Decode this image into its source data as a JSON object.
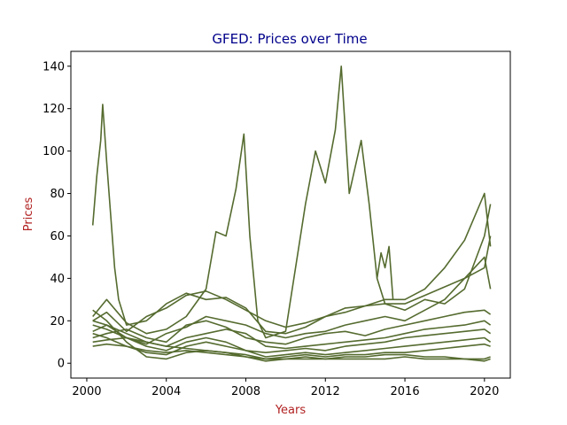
{
  "chart_data": {
    "type": "line",
    "title": "GFED: Prices over Time",
    "xlabel": "Years",
    "ylabel": "Prices",
    "xlim": [
      1999.2,
      2021.3
    ],
    "ylim": [
      -7,
      147
    ],
    "xticks": [
      2000,
      2004,
      2008,
      2012,
      2016,
      2020
    ],
    "yticks": [
      0,
      20,
      40,
      60,
      80,
      100,
      120,
      140
    ],
    "grid": false,
    "legend": "none",
    "colors": {
      "line": "#556b2f",
      "title": "#00008b",
      "axis_label": "#b22222"
    },
    "series": [
      {
        "x": [
          2000.3,
          2000.5,
          2000.7,
          2000.8,
          2001.0,
          2001.2,
          2001.4,
          2001.6,
          2002.0,
          2003.0,
          2004.0,
          2005.0,
          2006.0,
          2007.0,
          2008.0,
          2009.0,
          2010.0,
          2011.0,
          2012.0,
          2013.0,
          2014.0,
          2015.0,
          2016.0,
          2017.0,
          2018.0,
          2019.0,
          2020.0,
          2020.3
        ],
        "y": [
          65,
          88,
          105,
          122,
          95,
          70,
          45,
          30,
          18,
          20,
          28,
          33,
          30,
          31,
          26,
          15,
          14,
          17,
          22,
          24,
          27,
          28,
          28,
          32,
          36,
          40,
          45,
          60
        ]
      },
      {
        "x": [
          2000.3,
          2001.0,
          2002.0,
          2003.0,
          2004.0,
          2005.0,
          2006.0,
          2006.5,
          2007.0,
          2007.5,
          2007.9,
          2008.2,
          2008.6,
          2009.0,
          2010.0,
          2011.0,
          2011.5,
          2012.0,
          2012.5,
          2012.8,
          2013.2,
          2013.8,
          2014.2,
          2014.6,
          2015.0,
          2016.0,
          2017.0,
          2018.0,
          2019.0,
          2020.0,
          2020.3
        ],
        "y": [
          22,
          30,
          19,
          14,
          16,
          22,
          35,
          62,
          60,
          82,
          108,
          60,
          20,
          12,
          15,
          75,
          100,
          85,
          110,
          140,
          80,
          105,
          75,
          40,
          28,
          25,
          30,
          28,
          35,
          60,
          75
        ]
      },
      {
        "x": [
          2000.3,
          2001.0,
          2002.0,
          2003.0,
          2004.0,
          2005.0,
          2006.0,
          2007.0,
          2008.0,
          2009.0,
          2010.0,
          2011.0,
          2012.0,
          2013.0,
          2014.0,
          2015.0,
          2016.0,
          2017.0,
          2018.0,
          2019.0,
          2020.0,
          2020.3
        ],
        "y": [
          20,
          24,
          15,
          22,
          26,
          32,
          34,
          30,
          25,
          20,
          17,
          19,
          22,
          26,
          27,
          30,
          30,
          35,
          45,
          58,
          80,
          55
        ]
      },
      {
        "x": [
          2000.3,
          2001.0,
          2002.0,
          2003.0,
          2004.0,
          2005.0,
          2006.0,
          2007.0,
          2008.0,
          2009.0,
          2010.0,
          2011.0,
          2012.0,
          2013.0,
          2014.0,
          2015.0,
          2016.0,
          2017.0,
          2018.0,
          2019.0,
          2020.0,
          2020.3
        ],
        "y": [
          15,
          18,
          12,
          9,
          14,
          17,
          22,
          20,
          18,
          14,
          12,
          14,
          15,
          18,
          20,
          22,
          20,
          25,
          30,
          40,
          50,
          35
        ]
      },
      {
        "x": [
          2000.3,
          2001.0,
          2002.0,
          2003.0,
          2004.0,
          2005.0,
          2006.0,
          2007.0,
          2008.0,
          2009.0,
          2010.0,
          2011.0,
          2012.0,
          2013.0,
          2014.0,
          2015.0,
          2016.0,
          2017.0,
          2018.0,
          2019.0,
          2020.0,
          2020.3
        ],
        "y": [
          12,
          14,
          16,
          12,
          10,
          18,
          20,
          17,
          12,
          10,
          9,
          12,
          14,
          15,
          13,
          16,
          18,
          20,
          22,
          24,
          25,
          23
        ]
      },
      {
        "x": [
          2000.3,
          2001.0,
          2002.0,
          2003.0,
          2004.0,
          2005.0,
          2006.0,
          2007.0,
          2008.0,
          2009.0,
          2010.0,
          2011.0,
          2012.0,
          2013.0,
          2014.0,
          2015.0,
          2016.0,
          2017.0,
          2018.0,
          2019.0,
          2020.0,
          2020.3
        ],
        "y": [
          10,
          11,
          12,
          10,
          8,
          12,
          14,
          16,
          14,
          8,
          7,
          8,
          9,
          10,
          11,
          12,
          14,
          16,
          17,
          18,
          20,
          18
        ]
      },
      {
        "x": [
          2000.3,
          2001.0,
          2002.0,
          2003.0,
          2004.0,
          2005.0,
          2006.0,
          2007.0,
          2008.0,
          2009.0,
          2010.0,
          2011.0,
          2012.0,
          2013.0,
          2014.0,
          2015.0,
          2016.0,
          2017.0,
          2018.0,
          2019.0,
          2020.0,
          2020.3
        ],
        "y": [
          8,
          9,
          8,
          5,
          4,
          8,
          10,
          8,
          6,
          5,
          6,
          7,
          6,
          8,
          9,
          10,
          12,
          13,
          14,
          15,
          16,
          14
        ]
      },
      {
        "x": [
          2000.3,
          2001.0,
          2002.0,
          2003.0,
          2004.0,
          2005.0,
          2006.0,
          2007.0,
          2008.0,
          2009.0,
          2010.0,
          2011.0,
          2012.0,
          2013.0,
          2014.0,
          2015.0,
          2016.0,
          2017.0,
          2018.0,
          2019.0,
          2020.0,
          2020.3
        ],
        "y": [
          18,
          16,
          12,
          8,
          6,
          10,
          12,
          10,
          6,
          3,
          4,
          5,
          4,
          5,
          6,
          7,
          8,
          9,
          10,
          11,
          12,
          10
        ]
      },
      {
        "x": [
          2000.3,
          2001.0,
          2002.0,
          2003.0,
          2004.0,
          2005.0,
          2006.0,
          2007.0,
          2008.0,
          2009.0,
          2010.0,
          2011.0,
          2012.0,
          2013.0,
          2014.0,
          2015.0,
          2016.0,
          2017.0,
          2018.0,
          2019.0,
          2020.0,
          2020.3
        ],
        "y": [
          25,
          20,
          10,
          3,
          2,
          5,
          6,
          5,
          3,
          2,
          3,
          4,
          3,
          4,
          4,
          5,
          5,
          6,
          7,
          8,
          9,
          8
        ]
      },
      {
        "x": [
          2000.3,
          2001.0,
          2002.0,
          2003.0,
          2004.0,
          2005.0,
          2006.0,
          2007.0,
          2008.0,
          2009.0,
          2010.0,
          2011.0,
          2012.0,
          2013.0,
          2014.0,
          2015.0,
          2016.0,
          2017.0,
          2018.0,
          2019.0,
          2020.0,
          2020.3
        ],
        "y": [
          14,
          12,
          8,
          6,
          5,
          6,
          5,
          4,
          3,
          1,
          2,
          2,
          2,
          3,
          3,
          4,
          4,
          3,
          3,
          2,
          2,
          3
        ]
      },
      {
        "x": [
          2000.3,
          2001.0,
          2002.0,
          2003.0,
          2004.0,
          2005.0,
          2006.0,
          2007.0,
          2008.0,
          2009.0,
          2010.0,
          2011.0,
          2012.0,
          2013.0,
          2014.0,
          2015.0,
          2016.0,
          2017.0,
          2018.0,
          2019.0,
          2020.0,
          2020.3
        ],
        "y": [
          20,
          18,
          14,
          10,
          8,
          7,
          6,
          5,
          4,
          2,
          2,
          3,
          2,
          2,
          2,
          2,
          3,
          2,
          2,
          2,
          1,
          2
        ]
      },
      {
        "x": [
          2014.6,
          2014.8,
          2015.0,
          2015.2,
          2015.4
        ],
        "y": [
          40,
          52,
          45,
          55,
          30
        ]
      }
    ]
  }
}
